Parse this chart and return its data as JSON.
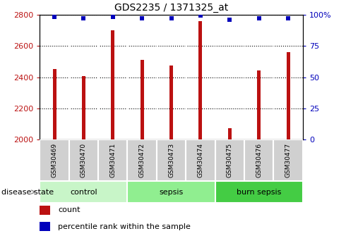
{
  "title": "GDS2235 / 1371325_at",
  "samples": [
    "GSM30469",
    "GSM30470",
    "GSM30471",
    "GSM30472",
    "GSM30473",
    "GSM30474",
    "GSM30475",
    "GSM30476",
    "GSM30477"
  ],
  "counts": [
    2450,
    2405,
    2700,
    2510,
    2475,
    2760,
    2075,
    2445,
    2560
  ],
  "percentile_ranks": [
    98,
    97,
    98,
    97,
    97,
    99,
    96,
    97,
    97
  ],
  "bar_color": "#bb1111",
  "dot_color": "#0000bb",
  "ylim_left": [
    2000,
    2800
  ],
  "ylim_right": [
    0,
    100
  ],
  "yticks_left": [
    2000,
    2200,
    2400,
    2600,
    2800
  ],
  "yticks_right": [
    0,
    25,
    50,
    75,
    100
  ],
  "disease_state_label": "disease state",
  "legend_count_label": "count",
  "legend_pct_label": "percentile rank within the sample",
  "tick_label_bg": "#d0d0d0",
  "bar_width": 0.12,
  "baseline": 2000,
  "group_colors": [
    "#c8f5c8",
    "#90ee90",
    "#44cc44"
  ],
  "group_labels": [
    "control",
    "sepsis",
    "burn sepsis"
  ],
  "group_ranges": [
    [
      0,
      2
    ],
    [
      3,
      5
    ],
    [
      6,
      8
    ]
  ]
}
